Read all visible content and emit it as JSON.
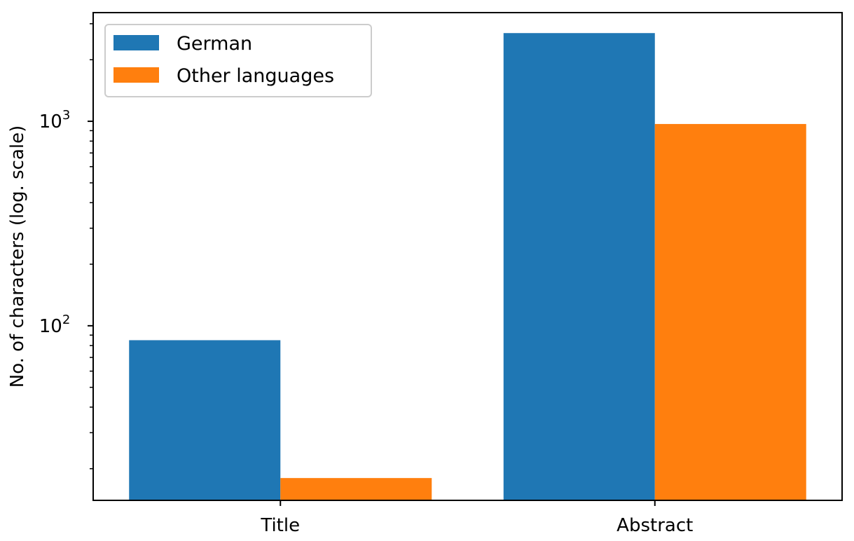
{
  "chart_data": {
    "type": "bar",
    "scale": "log",
    "categories": [
      "Title",
      "Abstract"
    ],
    "series": [
      {
        "name": "German",
        "color": "#1f77b4",
        "values": [
          85,
          2700
        ]
      },
      {
        "name": "Other languages",
        "color": "#ff7f0e",
        "values": [
          18,
          970
        ]
      }
    ],
    "ylabel": "No. of characters (log. scale)",
    "xlabel": "",
    "ylim": [
      14,
      3400
    ],
    "yticks": [
      {
        "value": 100,
        "base": "10",
        "exp": "2"
      },
      {
        "value": 1000,
        "base": "10",
        "exp": "3"
      }
    ],
    "legend_position": "upper-left",
    "grid": false
  }
}
